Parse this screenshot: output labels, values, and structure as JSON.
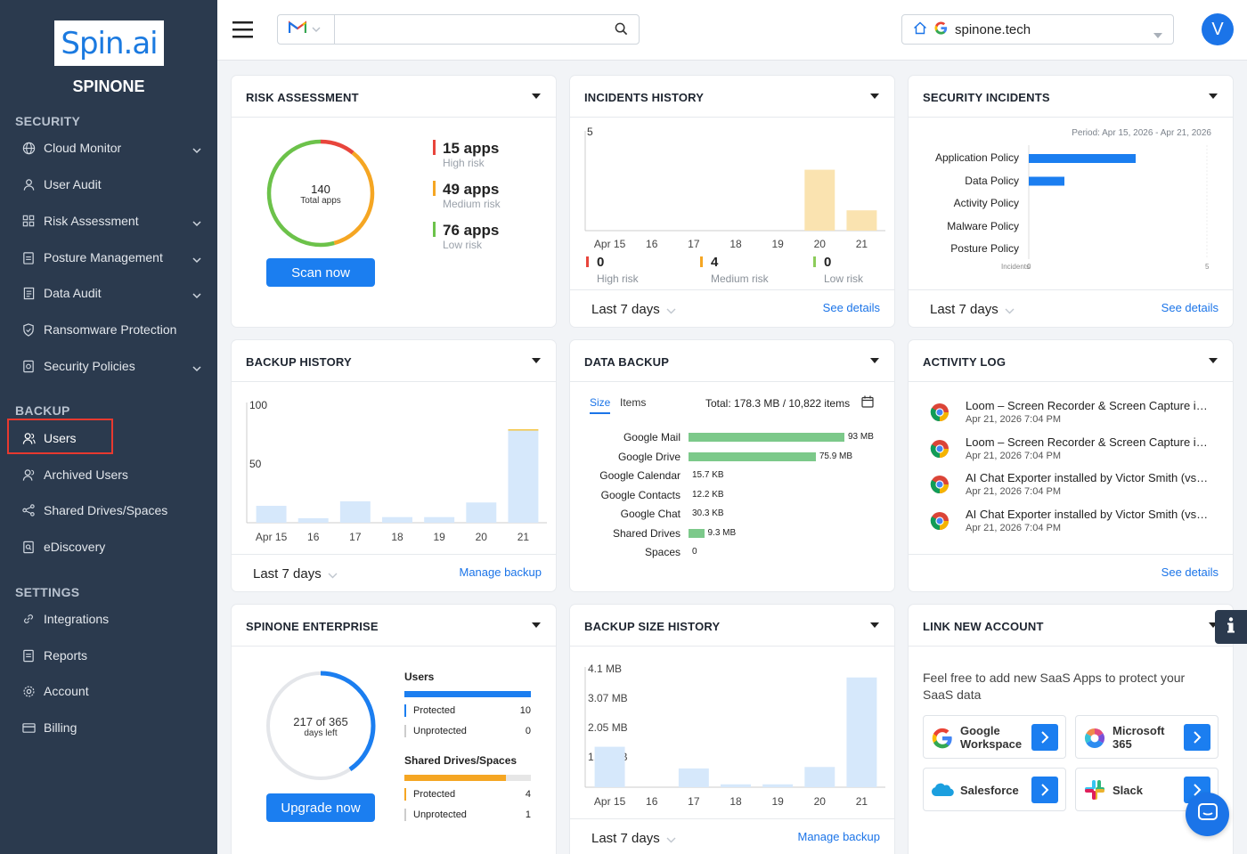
{
  "sidebar": {
    "logo": "Spin.ai",
    "brand": "SPINONE",
    "sections": {
      "security": "SECURITY",
      "backup": "BACKUP",
      "settings": "SETTINGS"
    },
    "security_items": [
      "Cloud Monitor",
      "User Audit",
      "Risk Assessment",
      "Posture Management",
      "Data Audit",
      "Ransomware Protection",
      "Security Policies"
    ],
    "backup_items": [
      "Users",
      "Archived Users",
      "Shared Drives/Spaces",
      "eDiscovery"
    ],
    "settings_items": [
      "Integrations",
      "Reports",
      "Account",
      "Billing"
    ]
  },
  "topbar": {
    "search_value": "",
    "domain": "spinone.tech",
    "avatar_letter": "V"
  },
  "risk": {
    "title": "RISK ASSESSMENT",
    "total": "140",
    "total_label": "Total apps",
    "items": [
      {
        "count": "15 apps",
        "label": "High risk",
        "color": "#e8453c"
      },
      {
        "count": "49 apps",
        "label": "Medium risk",
        "color": "#f5a623"
      },
      {
        "count": "76 apps",
        "label": "Low risk",
        "color": "#6cc24a"
      }
    ],
    "button": "Scan now"
  },
  "incidents_history": {
    "title": "INCIDENTS HISTORY",
    "ymax": "5",
    "days": [
      "Apr 15",
      "16",
      "17",
      "18",
      "19",
      "20",
      "21"
    ],
    "values": [
      0,
      0,
      0,
      0,
      0,
      3,
      1
    ],
    "summary": [
      {
        "value": "0",
        "label": "High risk",
        "color": "#e8453c"
      },
      {
        "value": "4",
        "label": "Medium risk",
        "color": "#f5a623"
      },
      {
        "value": "0",
        "label": "Low risk",
        "color": "#8ccc5a"
      }
    ],
    "period": "Last 7 days",
    "link": "See details"
  },
  "security_incidents": {
    "title": "SECURITY INCIDENTS",
    "period_note": "Period: Apr 15, 2026 - Apr 21, 2026",
    "categories": [
      "Application Policy",
      "Data Policy",
      "Activity Policy",
      "Malware Policy",
      "Posture Policy"
    ],
    "values": [
      3,
      1,
      0,
      0,
      0
    ],
    "axis_label": "Incidents",
    "axis_min": "0",
    "axis_max": "5",
    "period": "Last 7 days",
    "link": "See details"
  },
  "backup_history": {
    "title": "BACKUP HISTORY",
    "y_ticks": [
      "100",
      "50"
    ],
    "days": [
      "Apr 15",
      "16",
      "17",
      "18",
      "19",
      "20",
      "21"
    ],
    "values": [
      15,
      4,
      19,
      5,
      5,
      18,
      83
    ],
    "period": "Last 7 days",
    "link": "Manage backup"
  },
  "data_backup": {
    "title": "DATA BACKUP",
    "tab_size": "Size",
    "tab_items": "Items",
    "total": "Total: 178.3 MB / 10,822 items",
    "rows": [
      {
        "label": "Google Mail",
        "value": "93 MB",
        "mb": 93
      },
      {
        "label": "Google Drive",
        "value": "75.9 MB",
        "mb": 75.9
      },
      {
        "label": "Google Calendar",
        "value": "15.7 KB",
        "mb": 0
      },
      {
        "label": "Google Contacts",
        "value": "12.2 KB",
        "mb": 0
      },
      {
        "label": "Google Chat",
        "value": "30.3 KB",
        "mb": 0
      },
      {
        "label": "Shared Drives",
        "value": "9.3 MB",
        "mb": 9.3
      },
      {
        "label": "Spaces",
        "value": "0",
        "mb": 0
      }
    ]
  },
  "activity_log": {
    "title": "ACTIVITY LOG",
    "items": [
      {
        "title": "Loom – Screen Recorder & Screen Capture inst...",
        "time": "Apr 21, 2026 7:04 PM"
      },
      {
        "title": "Loom – Screen Recorder & Screen Capture inst...",
        "time": "Apr 21, 2026 7:04 PM"
      },
      {
        "title": "AI Chat Exporter installed by Victor Smith (vs@s...",
        "time": "Apr 21, 2026 7:04 PM"
      },
      {
        "title": "AI Chat Exporter installed by Victor Smith (vs@s...",
        "time": "Apr 21, 2026 7:04 PM"
      }
    ],
    "link": "See details"
  },
  "enterprise": {
    "title": "SPINONE ENTERPRISE",
    "days_used": 217,
    "days_total": 365,
    "days_text": "217 of 365",
    "days_label": "days left",
    "users_title": "Users",
    "users": [
      {
        "label": "Protected",
        "value": "10",
        "color": "#1b7ef0"
      },
      {
        "label": "Unprotected",
        "value": "0",
        "color": "#cccccc"
      }
    ],
    "drives_title": "Shared Drives/Spaces",
    "drives": [
      {
        "label": "Protected",
        "value": "4",
        "color": "#f5a623"
      },
      {
        "label": "Unprotected",
        "value": "1",
        "color": "#cccccc"
      }
    ],
    "users_fill": 1.0,
    "drives_fill": 0.8,
    "button": "Upgrade now"
  },
  "backup_size": {
    "title": "BACKUP SIZE HISTORY",
    "y_ticks": [
      "4.1 MB",
      "3.07 MB",
      "2.05 MB",
      "1.02 MB"
    ],
    "days": [
      "Apr 15",
      "16",
      "17",
      "18",
      "19",
      "20",
      "21"
    ],
    "values_mb": [
      1.4,
      0.0,
      0.65,
      0.1,
      0.1,
      0.7,
      3.8
    ],
    "ymax_mb": 4.1,
    "period": "Last 7 days",
    "link": "Manage backup"
  },
  "link_account": {
    "title": "LINK NEW ACCOUNT",
    "text": "Feel free to add new SaaS Apps to protect your SaaS data",
    "accounts": [
      {
        "line1": "Google",
        "line2": "Workspace"
      },
      {
        "line1": "Microsoft",
        "line2": "365"
      },
      {
        "line1": "Salesforce",
        "line2": ""
      },
      {
        "line1": "Slack",
        "line2": ""
      }
    ]
  }
}
